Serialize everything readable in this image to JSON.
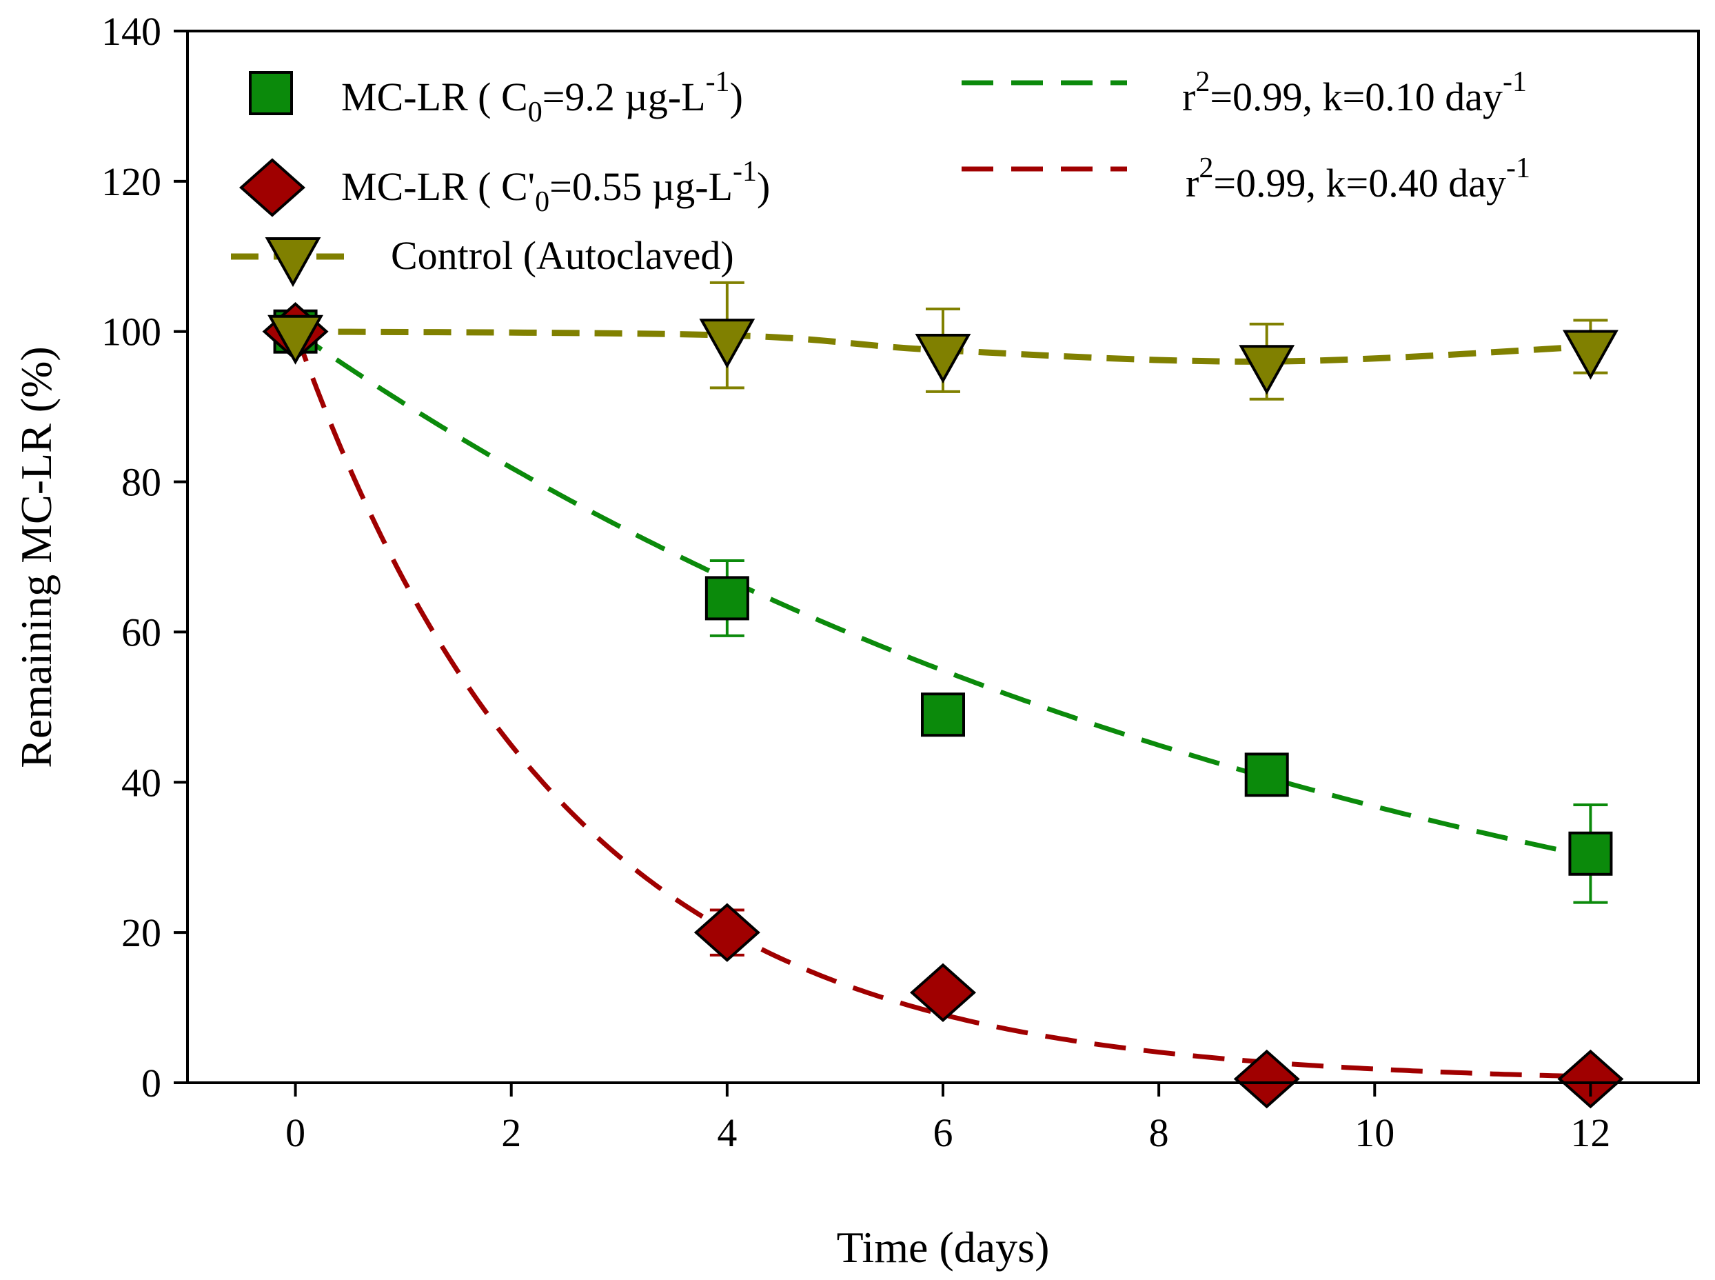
{
  "chart_data": {
    "type": "scatter",
    "xlabel": "Time (days)",
    "ylabel": "Remaining MC-LR (%)",
    "xlim": [
      -1,
      13
    ],
    "ylim": [
      0,
      140
    ],
    "xticks": [
      0,
      2,
      4,
      6,
      8,
      10,
      12
    ],
    "yticks": [
      0,
      20,
      40,
      60,
      80,
      100,
      120,
      140
    ],
    "grid": false,
    "legend_position": "top",
    "series": [
      {
        "id": "high",
        "name": "MC-LR ( C0=9.2 µg-L-1)",
        "label": {
          "pre": "MC-LR ( C",
          "sub": "0",
          "mid": "=9.2 µg-L",
          "sup": "-1",
          "post": ")"
        },
        "marker": "square",
        "color": "#0b8a0b",
        "x": [
          0,
          4,
          6,
          9,
          12
        ],
        "y": [
          100,
          64.5,
          49,
          41,
          30.5
        ],
        "err": [
          0,
          5,
          0,
          0,
          6.5
        ]
      },
      {
        "id": "low",
        "name": "MC-LR ( C'0=0.55 µg-L-1)",
        "label": {
          "pre": "MC-LR ( C'",
          "sub": "0",
          "mid": "=0.55 µg-L",
          "sup": "-1",
          "post": ")"
        },
        "marker": "diamond",
        "color": "#a00000",
        "x": [
          0,
          4,
          6,
          9,
          12
        ],
        "y": [
          100,
          20,
          12,
          0.5,
          0.5
        ],
        "err": [
          0,
          3,
          0,
          0,
          0
        ]
      },
      {
        "id": "control",
        "name": "Control (Autoclaved)",
        "label": {
          "pre": "Control (Autoclaved)"
        },
        "marker": "triangle-down",
        "color": "#808000",
        "x": [
          0,
          4,
          6,
          9,
          12
        ],
        "y": [
          100,
          99.5,
          97.5,
          96,
          98
        ],
        "err": [
          0,
          7,
          5.5,
          5,
          3.5
        ]
      }
    ],
    "fits": [
      {
        "id": "fit-high",
        "color": "#0b8a0b",
        "k": 0.1,
        "r2": 0.99,
        "label": {
          "pre": "r",
          "sup1": "2",
          "mid": "=0.99, k=0.10  day",
          "sup2": "-1"
        }
      },
      {
        "id": "fit-low",
        "color": "#a00000",
        "k": 0.4,
        "r2": 0.99,
        "label": {
          "pre": "r",
          "sup1": "2",
          "mid": "=0.99, k=0.40 day",
          "sup2": "-1"
        }
      }
    ]
  }
}
